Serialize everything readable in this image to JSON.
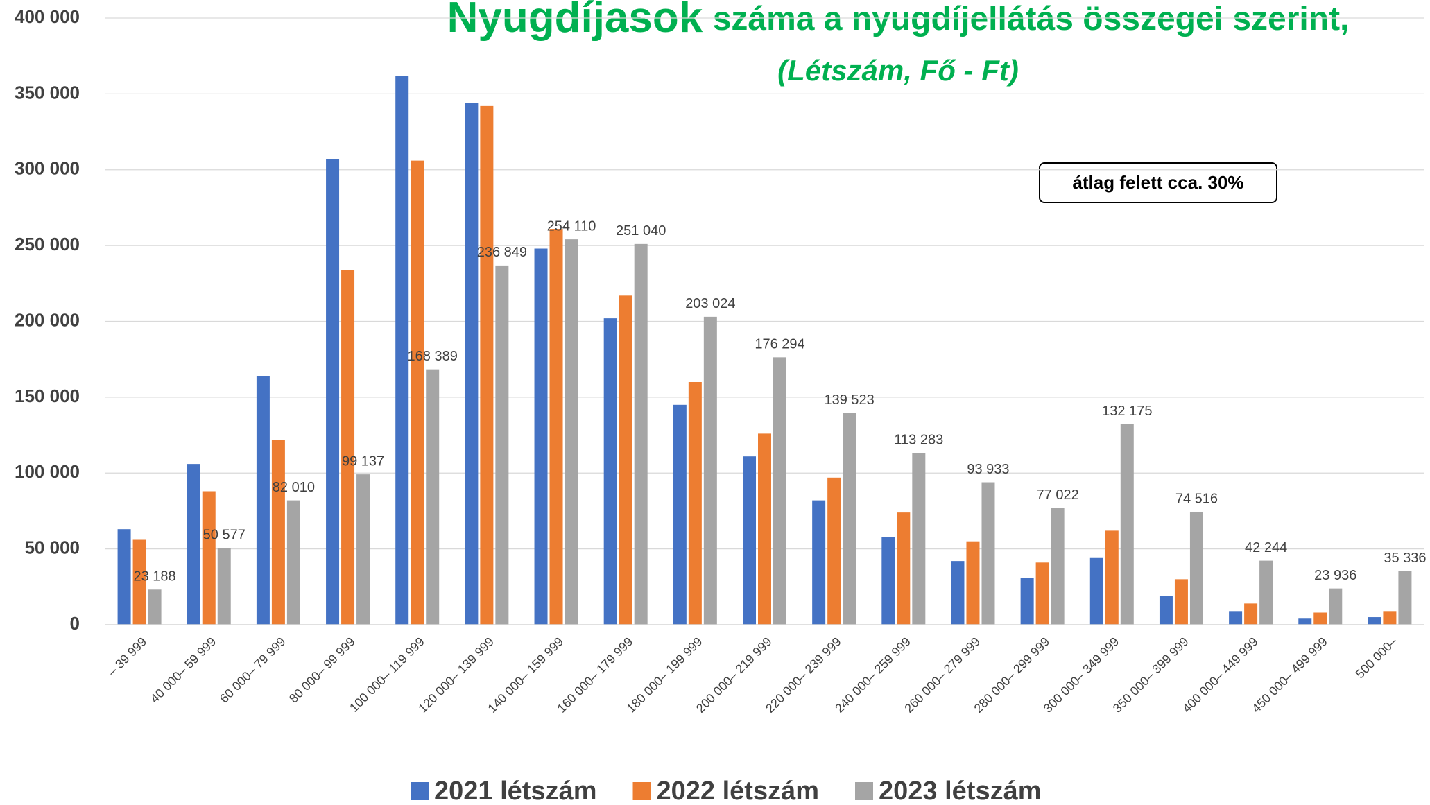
{
  "chart_data": {
    "type": "bar",
    "title_lead": "Nyugdíjasok",
    "title": "száma a nyugdíjellátás összegei szerint,",
    "subtitle": "(Létszám, Fő - Ft)",
    "annotation": "átlag felett cca. 30%",
    "categories": [
      "–   39 999",
      "40 000–   59 999",
      "60 000–   79 999",
      "80 000–   99 999",
      "100 000– 119 999",
      "120 000– 139 999",
      "140 000– 159 999",
      "160 000– 179 999",
      "180 000– 199 999",
      "200 000– 219 999",
      "220 000– 239 999",
      "240 000– 259 999",
      "260 000– 279 999",
      "280 000– 299 999",
      "300 000– 349 999",
      "350 000– 399 999",
      "400 000– 449 999",
      "450 000– 499 999",
      "500 000–"
    ],
    "series": [
      {
        "name": "2021 létszám",
        "color": "#4472c4",
        "values": [
          63000,
          106000,
          164000,
          307000,
          362000,
          344000,
          248000,
          202000,
          145000,
          111000,
          82000,
          58000,
          42000,
          31000,
          44000,
          19000,
          9000,
          4000,
          5000
        ]
      },
      {
        "name": "2022 létszám",
        "color": "#ed7d31",
        "values": [
          56000,
          88000,
          122000,
          234000,
          306000,
          342000,
          261000,
          217000,
          160000,
          126000,
          97000,
          74000,
          55000,
          41000,
          62000,
          30000,
          14000,
          8000,
          9000
        ]
      },
      {
        "name": "2023 létszám",
        "color": "#a5a5a5",
        "values": [
          23188,
          50577,
          82010,
          99137,
          168389,
          236849,
          254110,
          251040,
          203024,
          176294,
          139523,
          113283,
          93933,
          77022,
          132175,
          74516,
          42244,
          23936,
          35336
        ],
        "value_labels": [
          "23 188",
          "50 577",
          "82 010",
          "99 137",
          "168 389",
          "236 849",
          "254 110",
          "251 040",
          "203 024",
          "176 294",
          "139 523",
          "113 283",
          "93 933",
          "77 022",
          "132 175",
          "74 516",
          "42 244",
          "23 936",
          "35 336"
        ]
      }
    ],
    "ylim": [
      0,
      400000
    ],
    "yticks": [
      0,
      {
        "value": 50000,
        "label": "50 000"
      },
      {
        "value": 100000,
        "label": "100 000"
      },
      {
        "value": 150000,
        "label": "150 000"
      },
      {
        "value": 200000,
        "label": "200 000"
      },
      {
        "value": 250000,
        "label": "250 000"
      },
      {
        "value": 300000,
        "label": "300 000"
      },
      {
        "value": 350000,
        "label": "350 000"
      },
      {
        "value": 400000,
        "label": "400 000"
      }
    ],
    "grid": true,
    "legend": "bottom"
  }
}
